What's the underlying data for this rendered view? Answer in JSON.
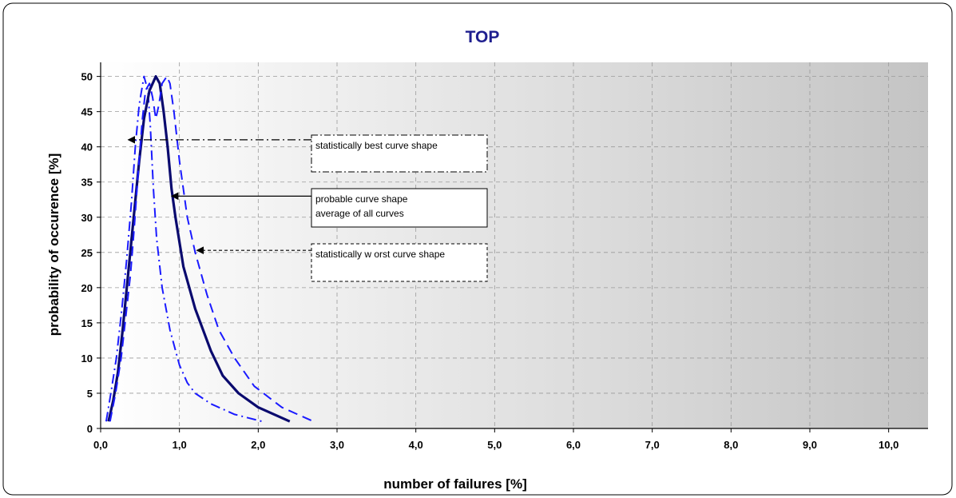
{
  "chart_data": {
    "type": "line",
    "title": "TOP",
    "xlabel": "number of failures [%]",
    "ylabel": "probability of occurence [%]",
    "xlim": [
      0,
      10.5
    ],
    "ylim": [
      0,
      52
    ],
    "x_ticks": [
      {
        "value": 0,
        "label": "0,0"
      },
      {
        "value": 1,
        "label": "1,0"
      },
      {
        "value": 2,
        "label": "2,0"
      },
      {
        "value": 3,
        "label": "3,0"
      },
      {
        "value": 4,
        "label": "4,0"
      },
      {
        "value": 5,
        "label": "5,0"
      },
      {
        "value": 6,
        "label": "6,0"
      },
      {
        "value": 7,
        "label": "7,0"
      },
      {
        "value": 8,
        "label": "8,0"
      },
      {
        "value": 9,
        "label": "9,0"
      },
      {
        "value": 10,
        "label": "10,0"
      }
    ],
    "y_ticks": [
      {
        "value": 0,
        "label": "0"
      },
      {
        "value": 5,
        "label": "5"
      },
      {
        "value": 10,
        "label": "10"
      },
      {
        "value": 15,
        "label": "15"
      },
      {
        "value": 20,
        "label": "20"
      },
      {
        "value": 25,
        "label": "25"
      },
      {
        "value": 30,
        "label": "30"
      },
      {
        "value": 35,
        "label": "35"
      },
      {
        "value": 40,
        "label": "40"
      },
      {
        "value": 45,
        "label": "45"
      },
      {
        "value": 50,
        "label": "50"
      }
    ],
    "grid": true,
    "background": "horizontal gradient white to gray",
    "series": [
      {
        "style": "dashdot",
        "color": "#1a1aff",
        "points": [
          [
            0.07,
            1
          ],
          [
            0.13,
            5
          ],
          [
            0.2,
            10
          ],
          [
            0.27,
            17
          ],
          [
            0.33,
            24
          ],
          [
            0.39,
            32
          ],
          [
            0.44,
            40
          ],
          [
            0.49,
            46
          ],
          [
            0.55,
            50
          ],
          [
            0.6,
            48
          ],
          [
            0.63,
            43
          ],
          [
            0.67,
            34
          ],
          [
            0.71,
            27
          ],
          [
            0.78,
            20
          ],
          [
            0.88,
            14
          ],
          [
            1.0,
            9
          ],
          [
            1.1,
            6.5
          ],
          [
            1.2,
            5
          ],
          [
            1.4,
            3.5
          ],
          [
            1.7,
            2
          ],
          [
            2.05,
            1
          ]
        ]
      },
      {
        "style": "solid",
        "color": "#0a0a6e",
        "points": [
          [
            0.1,
            1
          ],
          [
            0.16,
            4
          ],
          [
            0.22,
            8
          ],
          [
            0.28,
            14
          ],
          [
            0.35,
            22
          ],
          [
            0.42,
            30
          ],
          [
            0.49,
            38
          ],
          [
            0.55,
            44
          ],
          [
            0.62,
            48
          ],
          [
            0.7,
            50
          ],
          [
            0.75,
            49
          ],
          [
            0.8,
            45
          ],
          [
            0.85,
            40
          ],
          [
            0.9,
            34
          ],
          [
            0.95,
            30
          ],
          [
            1.05,
            23
          ],
          [
            1.2,
            17
          ],
          [
            1.4,
            11
          ],
          [
            1.55,
            7.5
          ],
          [
            1.75,
            5
          ],
          [
            2.0,
            3
          ],
          [
            2.4,
            1
          ]
        ]
      },
      {
        "style": "dashed",
        "color": "#1a1aff",
        "points": [
          [
            0.12,
            1
          ],
          [
            0.19,
            5
          ],
          [
            0.26,
            10
          ],
          [
            0.32,
            16
          ],
          [
            0.38,
            22
          ],
          [
            0.43,
            29
          ],
          [
            0.48,
            37
          ],
          [
            0.53,
            44
          ],
          [
            0.57,
            48
          ],
          [
            0.62,
            49
          ],
          [
            0.66,
            47
          ],
          [
            0.7,
            44
          ],
          [
            0.74,
            46
          ],
          [
            0.78,
            49
          ],
          [
            0.84,
            50
          ],
          [
            0.88,
            49
          ],
          [
            0.93,
            45
          ],
          [
            1.0,
            38
          ],
          [
            1.1,
            30
          ],
          [
            1.2,
            25
          ],
          [
            1.35,
            19
          ],
          [
            1.5,
            14
          ],
          [
            1.7,
            10
          ],
          [
            1.95,
            6
          ],
          [
            2.3,
            3
          ],
          [
            2.7,
            1
          ]
        ]
      }
    ],
    "annotations": [
      {
        "id": "best",
        "lines": [
          "statistically best curve shape"
        ],
        "line_style": "dashdot",
        "box_style": "dashdot",
        "arrow_target": {
          "x": 0.35,
          "y": 41
        }
      },
      {
        "id": "average",
        "lines": [
          "probable curve shape",
          "average of all curves"
        ],
        "line_style": "solid",
        "box_style": "solid",
        "arrow_target": {
          "x": 0.9,
          "y": 33
        }
      },
      {
        "id": "worst",
        "lines": [
          "statistically w orst curve shape"
        ],
        "line_style": "dashed",
        "box_style": "dashed",
        "arrow_target": {
          "x": 1.22,
          "y": 25.3
        }
      }
    ]
  }
}
